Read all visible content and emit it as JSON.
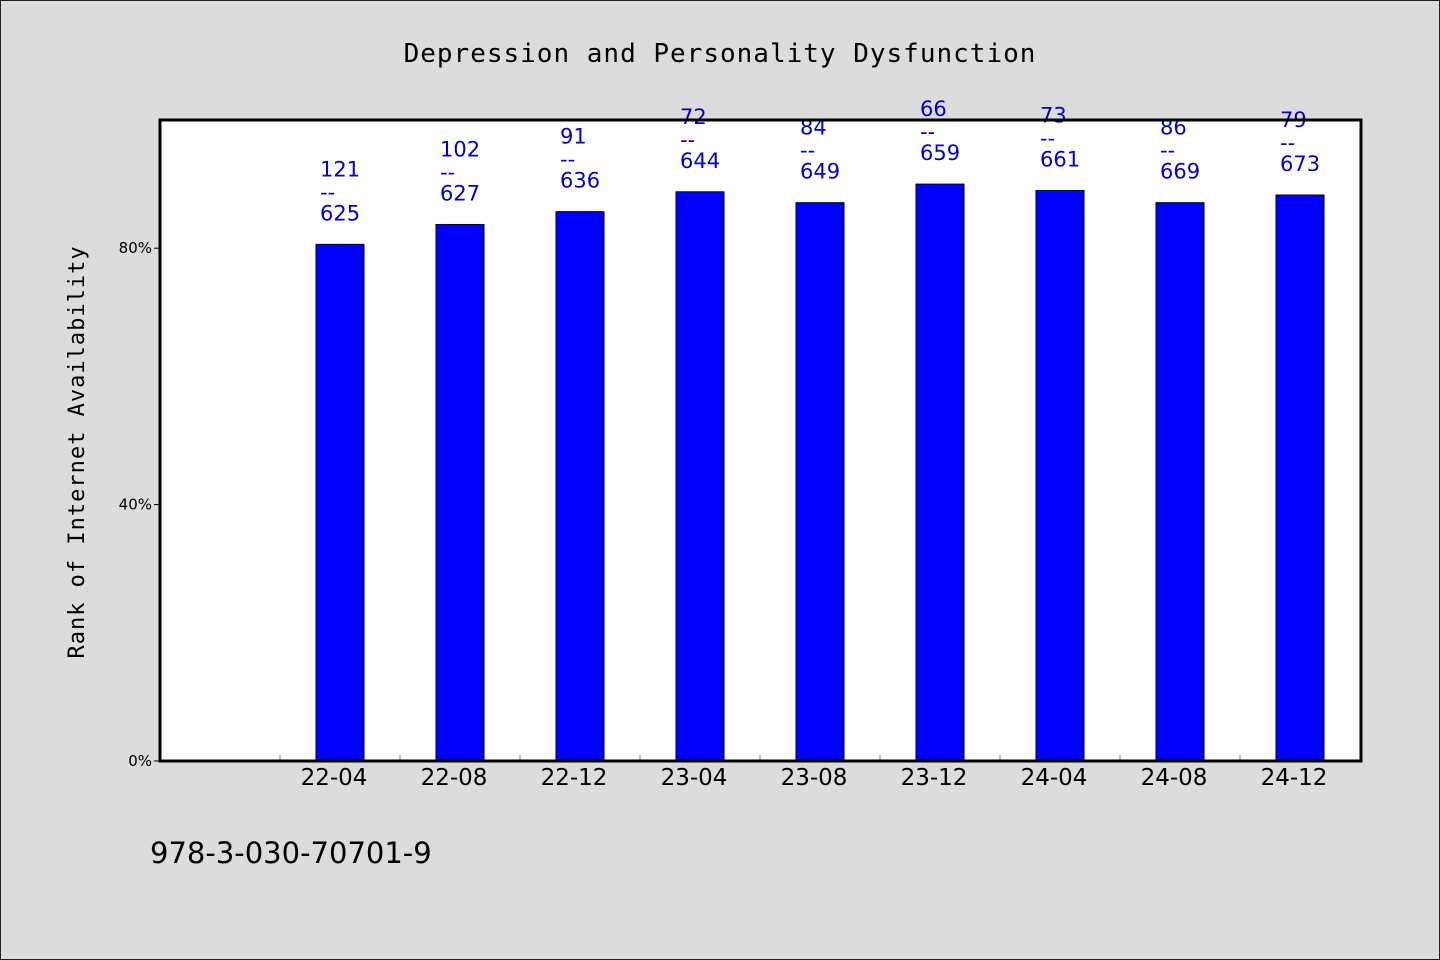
{
  "chart_data": {
    "type": "bar",
    "title": "Depression and Personality Dysfunction",
    "xlabel": "",
    "ylabel": "Rank of Internet Availability",
    "categories": [
      "22-04",
      "22-08",
      "22-12",
      "23-04",
      "23-08",
      "23-12",
      "24-04",
      "24-08",
      "24-12"
    ],
    "values": [
      80.6,
      83.7,
      85.7,
      88.8,
      87.1,
      90.0,
      89.0,
      87.1,
      88.3
    ],
    "data_labels": [
      {
        "top": "121",
        "sep": "--",
        "bottom": "625"
      },
      {
        "top": "102",
        "sep": "--",
        "bottom": "627"
      },
      {
        "top": "91",
        "sep": "--",
        "bottom": "636"
      },
      {
        "top": "72",
        "sep": "--",
        "bottom": "644"
      },
      {
        "top": "84",
        "sep": "--",
        "bottom": "649"
      },
      {
        "top": "66",
        "sep": "--",
        "bottom": "659"
      },
      {
        "top": "73",
        "sep": "--",
        "bottom": "661"
      },
      {
        "top": "86",
        "sep": "--",
        "bottom": "669"
      },
      {
        "top": "79",
        "sep": "--",
        "bottom": "673"
      }
    ],
    "y_ticks": [
      {
        "value": 0,
        "label": "0%"
      },
      {
        "value": 40,
        "label": "40%"
      },
      {
        "value": 80,
        "label": "80%"
      }
    ],
    "ylim": [
      0,
      100
    ],
    "grid": false,
    "bar_color": "#0000ff",
    "label_color": "#0000cc",
    "background_color": "#dcdcdc",
    "plot_background": "#ffffff"
  },
  "footer": {
    "isbn": "978-3-030-70701-9"
  }
}
